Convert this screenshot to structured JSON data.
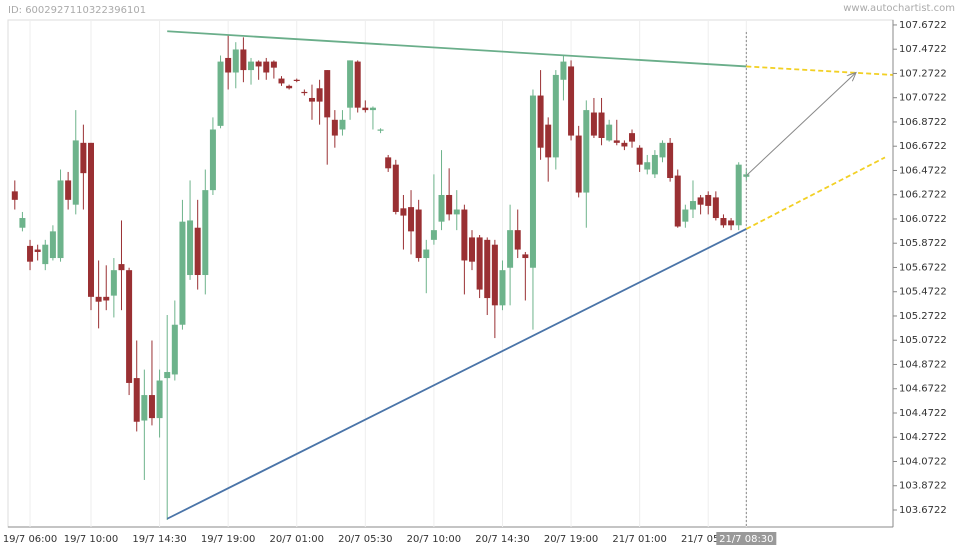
{
  "header": {
    "id": "ID: 6002927110322396101",
    "site": "www.autochartist.com"
  },
  "chart_data": {
    "type": "candlestick",
    "up_color": "#6db38b",
    "down_color": "#9a3033",
    "grid": true,
    "categories": [
      null,
      null,
      "19/7 06:00",
      null,
      null,
      null,
      null,
      null,
      null,
      null,
      "19/7 10:00",
      null,
      null,
      null,
      null,
      null,
      null,
      null,
      null,
      "19/7 14:30",
      null,
      null,
      null,
      null,
      null,
      null,
      null,
      null,
      "19/7 19:00",
      null,
      null,
      null,
      null,
      null,
      null,
      null,
      null,
      "20/7 01:00",
      null,
      null,
      null,
      null,
      null,
      null,
      null,
      null,
      "20/7 05:30",
      null,
      null,
      null,
      null,
      null,
      null,
      null,
      null,
      "20/7 10:00",
      null,
      null,
      null,
      null,
      null,
      null,
      null,
      null,
      "20/7 14:30",
      null,
      null,
      null,
      null,
      null,
      null,
      null,
      null,
      "20/7 19:00",
      null,
      null,
      null,
      null,
      null,
      null,
      null,
      null,
      "21/7 01:00",
      null,
      null,
      null,
      null,
      null,
      null,
      null,
      null,
      "21/7 05:30",
      null,
      null,
      null,
      null,
      "21/7 08:30"
    ],
    "open": [
      106.3,
      106.0,
      105.85,
      105.82,
      105.7,
      105.75,
      105.75,
      106.39,
      106.19,
      106.7,
      106.7,
      105.43,
      105.43,
      105.44,
      105.7,
      105.65,
      104.76,
      104.41,
      104.62,
      104.43,
      104.76,
      104.79,
      105.2,
      105.61,
      106.0,
      105.61,
      106.31,
      106.84,
      107.4,
      107.28,
      107.47,
      107.3,
      107.37,
      107.37,
      107.37,
      107.23,
      107.17,
      107.22,
      107.12,
      107.07,
      107.15,
      107.3,
      106.89,
      106.81,
      106.99,
      107.37,
      106.99,
      106.97,
      106.8,
      106.58,
      106.52,
      106.16,
      106.17,
      106.15,
      105.75,
      105.9,
      106.05,
      106.27,
      106.11,
      106.15,
      105.92,
      105.92,
      105.9,
      105.86,
      105.36,
      105.67,
      105.98,
      105.78,
      105.67,
      107.09,
      106.85,
      106.58,
      107.22,
      107.33,
      106.76,
      106.29,
      106.95,
      106.95,
      106.72,
      106.72,
      106.7,
      106.78,
      106.66,
      106.48,
      106.44,
      106.58,
      106.7,
      106.43,
      106.05,
      106.15,
      106.25,
      106.27,
      106.25,
      106.08,
      106.06,
      106.02,
      106.42
    ],
    "high": [
      106.39,
      106.13,
      105.9,
      105.86,
      105.9,
      106.02,
      106.48,
      106.46,
      106.97,
      106.85,
      106.7,
      105.73,
      105.69,
      105.75,
      106.06,
      105.67,
      105.07,
      104.83,
      105.07,
      104.83,
      105.28,
      105.4,
      106.23,
      106.39,
      106.23,
      106.48,
      106.91,
      107.42,
      107.59,
      107.53,
      107.57,
      107.4,
      107.38,
      107.4,
      107.38,
      107.25,
      107.18,
      107.23,
      107.14,
      107.18,
      107.22,
      107.3,
      106.97,
      106.97,
      107.38,
      107.38,
      107.05,
      107.0,
      106.82,
      106.6,
      106.56,
      106.27,
      106.31,
      106.23,
      105.9,
      106.44,
      106.64,
      106.49,
      106.31,
      106.19,
      105.98,
      105.94,
      105.92,
      105.9,
      105.73,
      106.19,
      106.15,
      105.8,
      107.14,
      107.3,
      106.91,
      107.3,
      107.42,
      107.38,
      106.84,
      107.05,
      107.07,
      107.07,
      106.89,
      106.89,
      106.72,
      106.81,
      106.68,
      106.6,
      106.64,
      106.72,
      106.74,
      106.48,
      106.19,
      106.39,
      106.27,
      106.3,
      106.3,
      106.11,
      106.08,
      106.54,
      106.48
    ],
    "low": [
      106.15,
      105.97,
      105.65,
      105.73,
      105.65,
      105.73,
      105.72,
      106.15,
      106.11,
      106.15,
      105.32,
      105.17,
      105.32,
      105.26,
      105.32,
      104.62,
      104.32,
      103.92,
      104.37,
      104.27,
      103.59,
      104.74,
      105.16,
      105.57,
      105.49,
      105.45,
      106.27,
      106.82,
      107.14,
      107.15,
      107.2,
      107.18,
      107.22,
      107.22,
      107.23,
      107.17,
      107.14,
      107.2,
      107.09,
      106.89,
      106.85,
      106.52,
      106.66,
      106.76,
      106.89,
      106.95,
      106.95,
      106.81,
      106.78,
      106.46,
      106.11,
      105.82,
      105.78,
      105.72,
      105.46,
      105.86,
      105.98,
      106.06,
      105.98,
      105.45,
      105.65,
      105.42,
      105.28,
      105.09,
      105.32,
      105.36,
      105.75,
      105.4,
      105.16,
      106.56,
      106.38,
      106.48,
      107.05,
      106.72,
      106.25,
      106.0,
      106.74,
      106.68,
      106.71,
      106.68,
      106.64,
      106.66,
      106.46,
      106.44,
      106.41,
      106.54,
      106.38,
      106.0,
      106.0,
      106.08,
      106.11,
      106.11,
      106.06,
      106.0,
      105.98,
      105.98,
      106.39
    ],
    "close": [
      106.23,
      106.08,
      105.72,
      105.8,
      105.86,
      105.97,
      106.39,
      106.23,
      106.72,
      106.45,
      105.43,
      105.39,
      105.4,
      105.65,
      105.65,
      104.72,
      104.4,
      104.62,
      104.43,
      104.74,
      104.81,
      105.2,
      106.05,
      106.06,
      105.61,
      106.31,
      106.81,
      107.37,
      107.28,
      107.47,
      107.3,
      107.37,
      107.33,
      107.28,
      107.32,
      107.19,
      107.15,
      107.21,
      107.11,
      107.04,
      107.04,
      106.91,
      106.76,
      106.89,
      107.38,
      106.99,
      106.97,
      106.99,
      106.81,
      106.49,
      106.13,
      106.1,
      105.97,
      105.75,
      105.82,
      105.98,
      106.27,
      106.11,
      106.15,
      105.73,
      105.72,
      105.49,
      105.42,
      105.36,
      105.65,
      105.98,
      105.82,
      105.75,
      107.09,
      106.66,
      106.58,
      107.26,
      107.37,
      106.76,
      106.29,
      106.97,
      106.76,
      106.74,
      106.85,
      106.7,
      106.67,
      106.71,
      106.52,
      106.54,
      106.6,
      106.7,
      106.41,
      106.01,
      106.15,
      106.22,
      106.19,
      106.18,
      106.08,
      106.02,
      106.02,
      106.52,
      106.44
    ],
    "ylim": [
      103.532,
      107.713
    ],
    "yticks": [
      103.6722,
      103.8722,
      104.0722,
      104.2722,
      104.4722,
      104.6722,
      104.8722,
      105.0722,
      105.2722,
      105.4722,
      105.6722,
      105.8722,
      106.0722,
      106.2722,
      106.4722,
      106.6722,
      106.8722,
      107.0722,
      107.2722,
      107.4722,
      107.6722
    ],
    "trendlines": [
      {
        "color": "#6aae8a",
        "x": [
          20,
          96
        ],
        "values": [
          107.62,
          107.33
        ]
      },
      {
        "color": "#4a74a8",
        "x": [
          20,
          96
        ],
        "values": [
          103.6,
          105.99
        ]
      },
      {
        "color": "#f2d024",
        "dash": true,
        "x": [
          96,
          115.2
        ],
        "values": [
          107.33,
          107.26
        ]
      },
      {
        "color": "#f2d024",
        "dash": true,
        "x": [
          96,
          114.2
        ],
        "values": [
          105.99,
          106.58
        ]
      },
      {
        "color": "#888888",
        "arrow": true,
        "x": [
          96,
          110.4
        ],
        "values": [
          106.43,
          107.28
        ]
      }
    ]
  }
}
